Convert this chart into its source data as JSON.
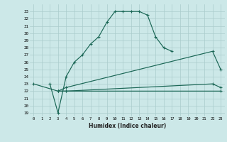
{
  "xlabel": "Humidex (Indice chaleur)",
  "bg_color": "#cce8e8",
  "grid_color": "#aacccc",
  "line_color": "#1a6655",
  "xlim": [
    -0.5,
    23.5
  ],
  "ylim": [
    18.5,
    34.0
  ],
  "xticks": [
    0,
    1,
    2,
    3,
    4,
    5,
    6,
    7,
    8,
    9,
    10,
    11,
    12,
    13,
    14,
    15,
    16,
    17,
    18,
    19,
    20,
    21,
    22,
    23
  ],
  "yticks": [
    19,
    20,
    21,
    22,
    23,
    24,
    25,
    26,
    27,
    28,
    29,
    30,
    31,
    32,
    33
  ],
  "line1_x": [
    2,
    3,
    4,
    5,
    6,
    7,
    8,
    9,
    10,
    11,
    12,
    13,
    14,
    15,
    16,
    17
  ],
  "line1_y": [
    23.0,
    19.0,
    24.0,
    26.0,
    27.0,
    28.5,
    29.5,
    31.5,
    33.0,
    33.0,
    33.0,
    33.0,
    32.5,
    29.5,
    28.0,
    27.5
  ],
  "line2_x": [
    3,
    4,
    22,
    23
  ],
  "line2_y": [
    22.0,
    22.5,
    27.5,
    25.0
  ],
  "line3_x": [
    3,
    4,
    22,
    23
  ],
  "line3_y": [
    22.0,
    22.0,
    23.0,
    22.5
  ],
  "line4_x": [
    0,
    3,
    4,
    23
  ],
  "line4_y": [
    23.0,
    22.0,
    22.0,
    22.0
  ],
  "marker": "+"
}
